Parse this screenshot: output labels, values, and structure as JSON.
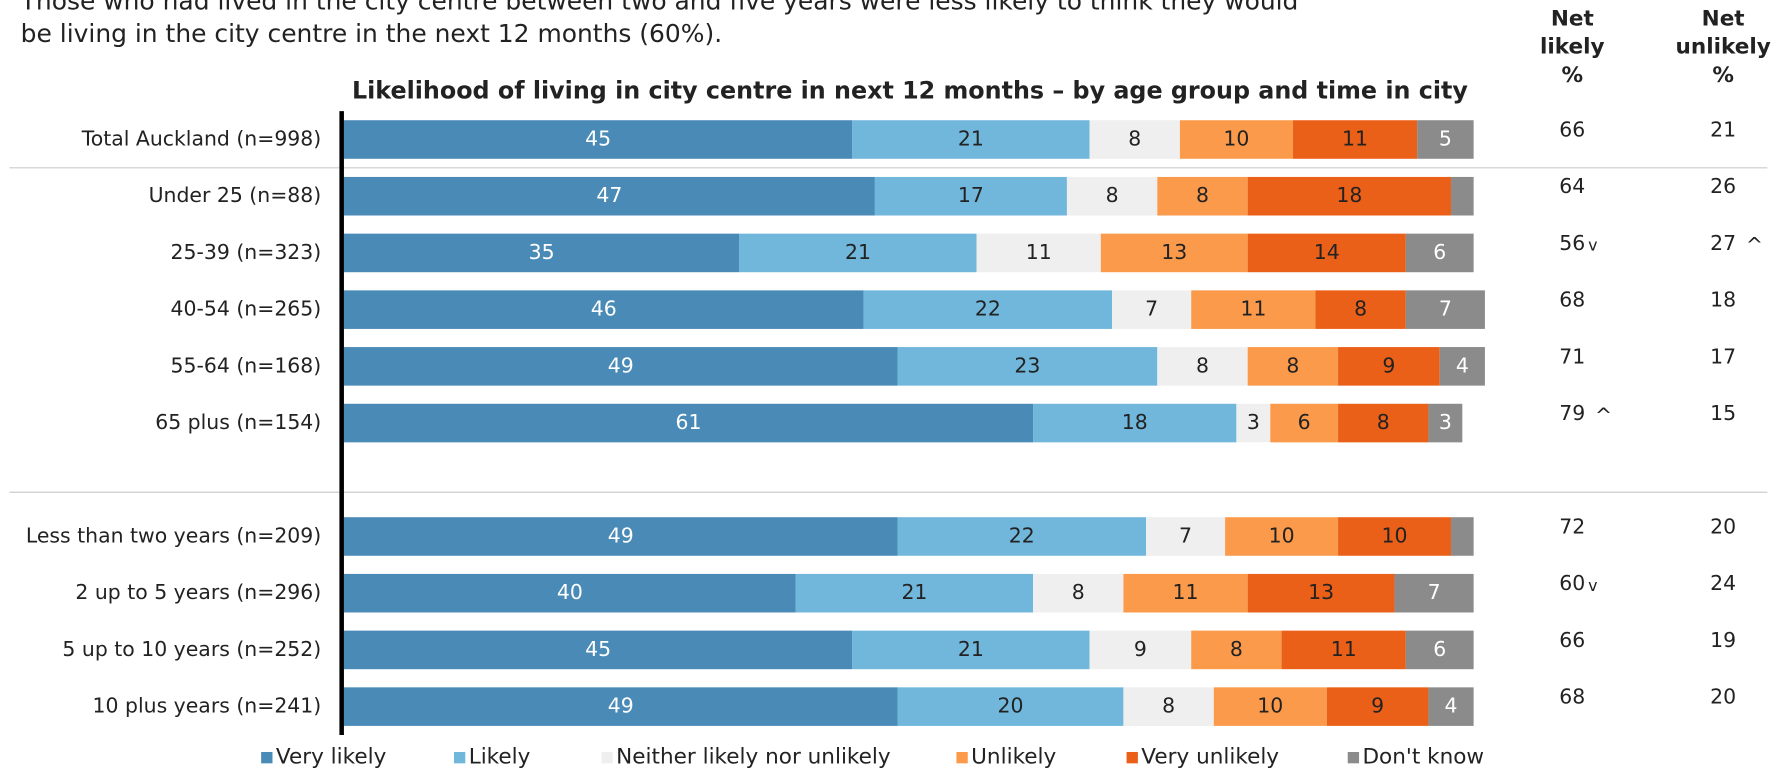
{
  "chart_data": {
    "type": "stacked-bar-horizontal",
    "annotation": [
      "Those who had lived in the city centre between two and five years were less likely to think they would",
      "be living in the city centre in the next 12 months (60%)."
    ],
    "title": "Likelihood of living in city centre in next 12 months – by age group and time in city",
    "categories": [
      "Total Auckland (n=998)",
      "Under 25 (n=88)",
      "25-39 (n=323)",
      "40-54 (n=265)",
      "55-64 (n=168)",
      "65 plus (n=154)",
      "Less than two years (n=209)",
      "2 up to 5 years (n=296)",
      "5 up to 10 years (n=252)",
      "10 plus years (n=241)"
    ],
    "xlim": [
      0,
      100
    ],
    "series": [
      {
        "name": "Very likely",
        "color": "#4a8ab7",
        "values": [
          45,
          47,
          35,
          46,
          49,
          61,
          49,
          40,
          45,
          49
        ]
      },
      {
        "name": "Likely",
        "color": "#70b7db",
        "values": [
          21,
          17,
          21,
          22,
          23,
          18,
          22,
          21,
          21,
          20
        ]
      },
      {
        "name": "Neither likely nor unlikely",
        "color": "#efefef",
        "values": [
          8,
          8,
          11,
          7,
          8,
          3,
          7,
          8,
          9,
          8
        ]
      },
      {
        "name": "Unlikely",
        "color": "#fb9a4a",
        "values": [
          10,
          8,
          13,
          11,
          8,
          6,
          10,
          11,
          8,
          10
        ]
      },
      {
        "name": "Very unlikely",
        "color": "#eb6018",
        "values": [
          11,
          18,
          14,
          8,
          9,
          8,
          10,
          13,
          11,
          9
        ]
      },
      {
        "name": "Don't know",
        "color": "#8b8b8b",
        "values": [
          5,
          2,
          6,
          7,
          4,
          3,
          2,
          7,
          6,
          4
        ]
      }
    ],
    "net_columns": [
      {
        "header": [
          "Net",
          "likely",
          "%"
        ],
        "values": [
          66,
          64,
          56,
          68,
          71,
          79,
          72,
          60,
          66,
          68
        ],
        "flags": [
          null,
          null,
          "v",
          null,
          null,
          "^",
          null,
          "v",
          null,
          null
        ]
      },
      {
        "header": [
          "Net",
          "unlikely",
          "%"
        ],
        "values": [
          21,
          26,
          27,
          18,
          17,
          15,
          20,
          24,
          19,
          20
        ],
        "flags": [
          null,
          null,
          "^",
          null,
          null,
          null,
          null,
          null,
          null,
          null
        ]
      }
    ]
  }
}
